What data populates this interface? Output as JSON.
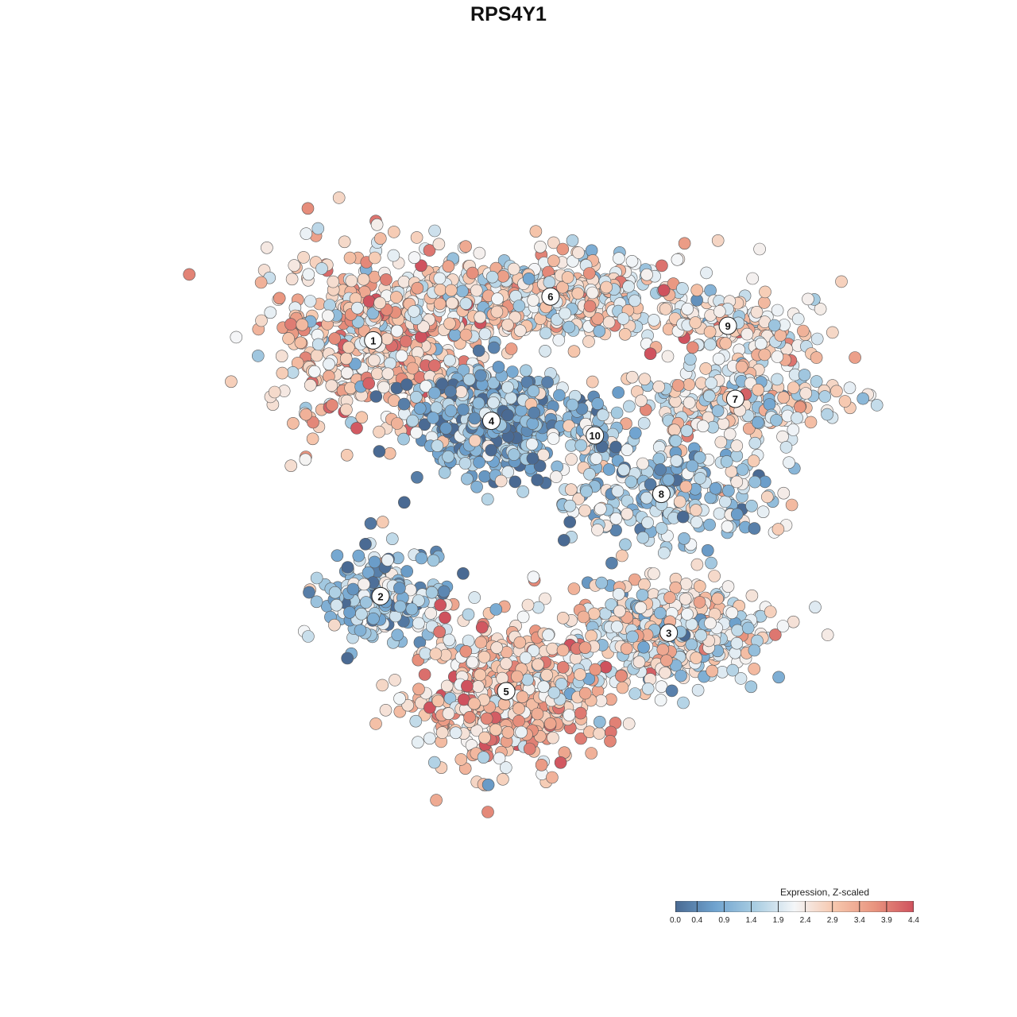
{
  "chart_data": {
    "type": "scatter",
    "title": "RPS4Y1",
    "color_scale": {
      "title": "Expression, Z-scaled",
      "min": 0.0,
      "max": 4.4,
      "ticks": [
        "0.0",
        "0.4",
        "0.9",
        "1.4",
        "1.9",
        "2.4",
        "2.9",
        "3.4",
        "3.9",
        "4.4"
      ],
      "colors": [
        "#4a6a93",
        "#6fa3cf",
        "#a9cde2",
        "#f4f6f8",
        "#f6c7ad",
        "#e9957f",
        "#cf525e"
      ]
    },
    "clusters": [
      {
        "label": "1",
        "center": [
          0.29,
          0.27
        ],
        "spread": [
          0.075,
          0.06
        ],
        "n": 520,
        "mean_expression": 2.8
      },
      {
        "label": "6",
        "center": [
          0.53,
          0.21
        ],
        "spread": [
          0.1,
          0.03
        ],
        "n": 430,
        "mean_expression": 2.4
      },
      {
        "label": "4",
        "center": [
          0.45,
          0.38
        ],
        "spread": [
          0.05,
          0.035
        ],
        "n": 520,
        "mean_expression": 1.0
      },
      {
        "label": "9",
        "center": [
          0.77,
          0.25
        ],
        "spread": [
          0.06,
          0.02
        ],
        "n": 150,
        "mean_expression": 2.5
      },
      {
        "label": "7",
        "center": [
          0.78,
          0.35
        ],
        "spread": [
          0.07,
          0.025
        ],
        "n": 240,
        "mean_expression": 2.3
      },
      {
        "label": "10",
        "center": [
          0.59,
          0.4
        ],
        "spread": [
          0.02,
          0.025
        ],
        "n": 60,
        "mean_expression": 1.4
      },
      {
        "label": "8",
        "center": [
          0.68,
          0.48
        ],
        "spread": [
          0.08,
          0.04
        ],
        "n": 240,
        "mean_expression": 1.6
      },
      {
        "label": "2",
        "center": [
          0.3,
          0.62
        ],
        "spread": [
          0.04,
          0.03
        ],
        "n": 230,
        "mean_expression": 1.3
      },
      {
        "label": "3",
        "center": [
          0.69,
          0.67
        ],
        "spread": [
          0.06,
          0.035
        ],
        "n": 420,
        "mean_expression": 2.2
      },
      {
        "label": "5",
        "center": [
          0.47,
          0.75
        ],
        "spread": [
          0.06,
          0.05
        ],
        "n": 560,
        "mean_expression": 2.9
      }
    ]
  }
}
